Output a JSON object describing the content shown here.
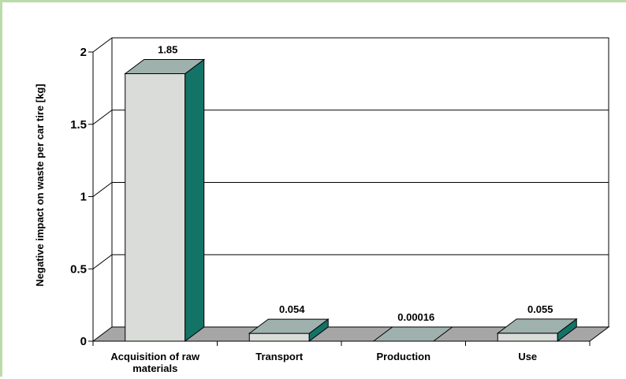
{
  "chart_data": {
    "type": "bar",
    "ylabel": "Negative impact on waste per car tire [kg]",
    "categories": [
      "Acquisition of raw materials",
      "Transport",
      "Production",
      "Use"
    ],
    "category_lines": [
      [
        "Acquisition of raw",
        "materials"
      ],
      [
        "Transport"
      ],
      [
        "Production"
      ],
      [
        "Use"
      ]
    ],
    "values": [
      1.85,
      0.054,
      0.00016,
      0.055
    ],
    "value_labels": [
      "1.85",
      "0.054",
      "0.00016",
      "0.055"
    ],
    "yticks": [
      0,
      0.5,
      1,
      1.5,
      2
    ],
    "ytick_labels": [
      "0",
      "0.5",
      "1",
      "1.5",
      "2"
    ],
    "ylim": [
      0,
      2
    ],
    "grid": true,
    "style": "3d",
    "colors": {
      "bar_front": "#d9dcd9",
      "bar_top": "#9fb1ad",
      "bar_side": "#137367",
      "floor": "#a6a6a6",
      "frame_border": "#b9dca8"
    }
  }
}
